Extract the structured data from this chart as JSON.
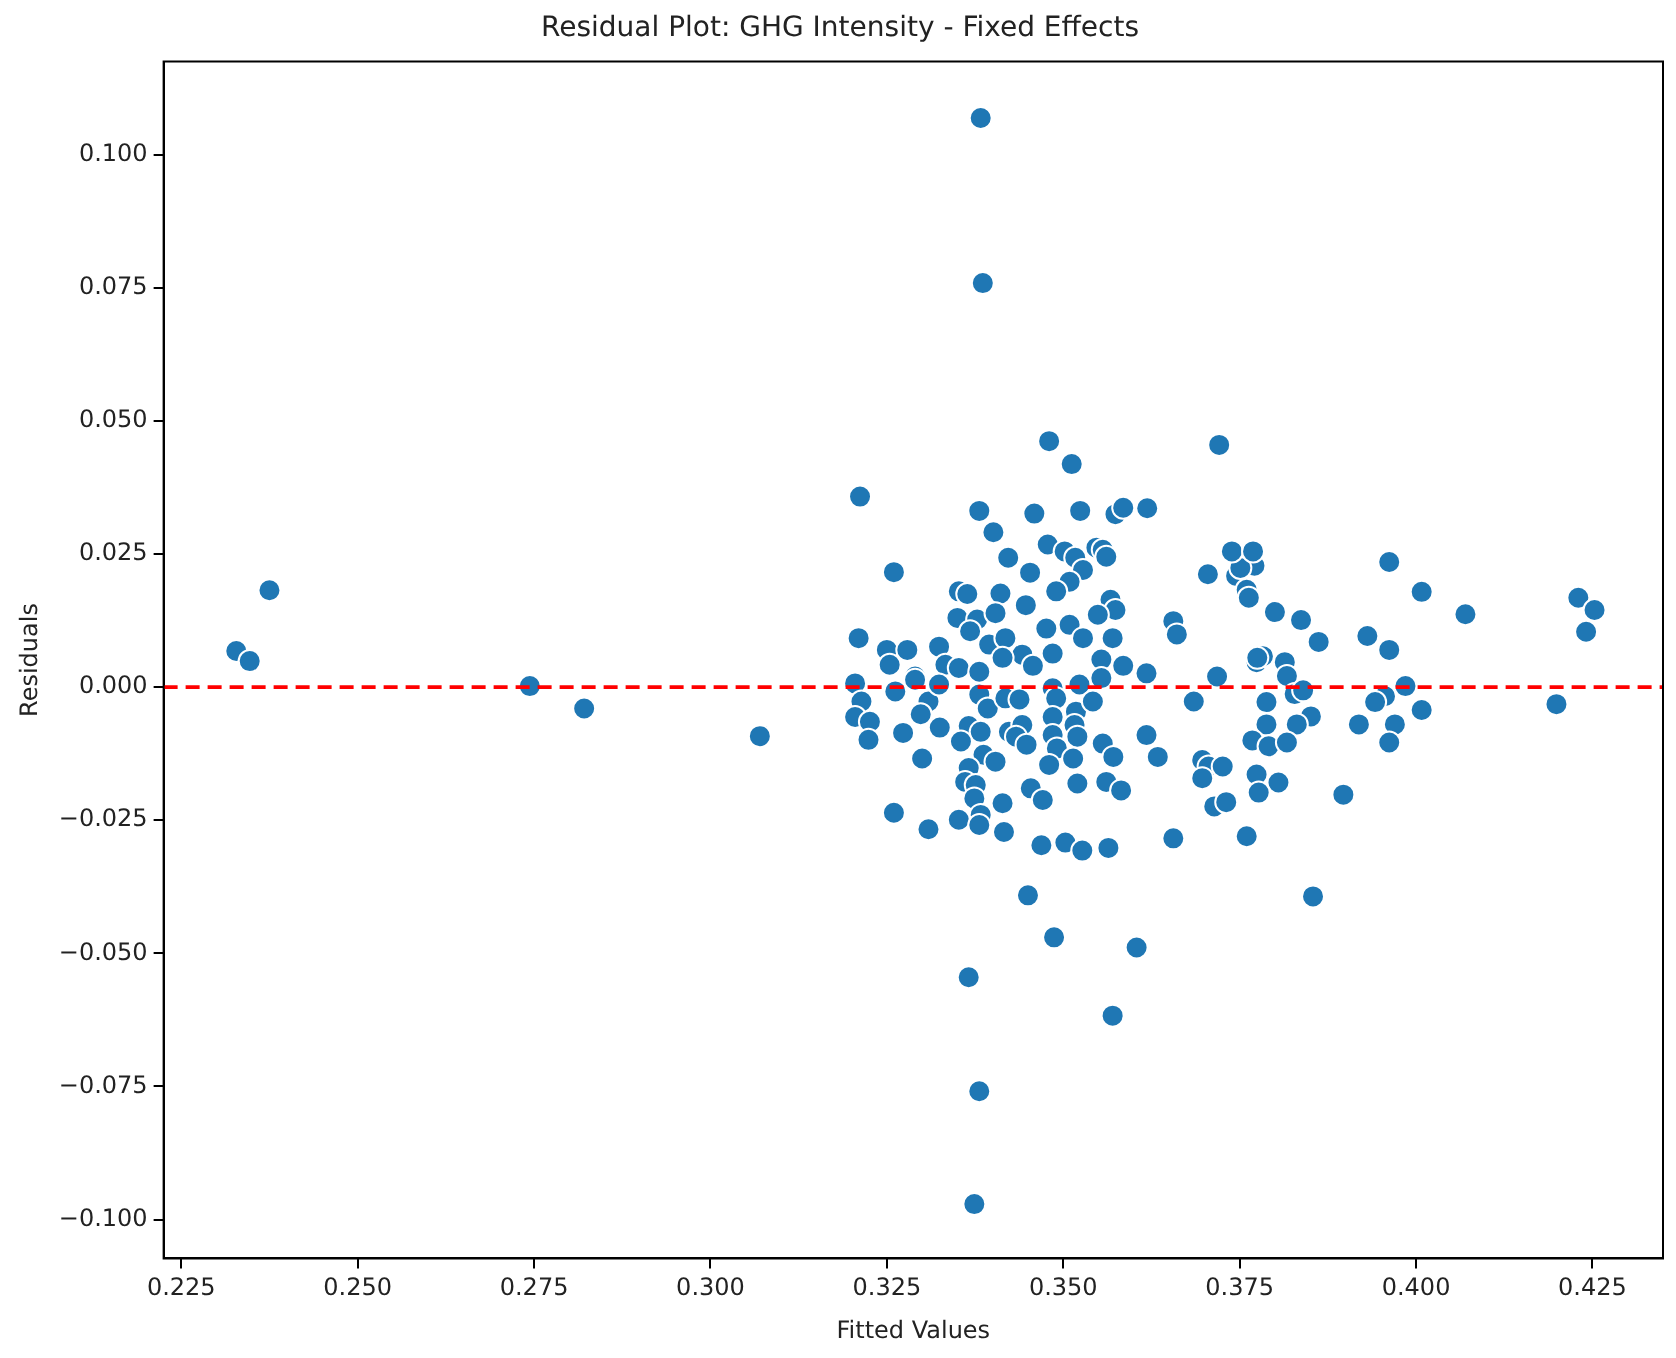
{
  "chart_data": {
    "type": "scatter",
    "title": "Residual Plot: GHG Intensity - Fixed Effects",
    "xlabel": "Fitted Values",
    "ylabel": "Residuals",
    "marker": "circle",
    "grid": false,
    "legend": false,
    "xlim": [
      0.2225,
      0.435
    ],
    "ylim": [
      -0.1073,
      0.1175
    ],
    "xticks": [
      {
        "value": 0.225,
        "label": "0.225"
      },
      {
        "value": 0.25,
        "label": "0.250"
      },
      {
        "value": 0.275,
        "label": "0.275"
      },
      {
        "value": 0.3,
        "label": "0.300"
      },
      {
        "value": 0.325,
        "label": "0.325"
      },
      {
        "value": 0.35,
        "label": "0.350"
      },
      {
        "value": 0.375,
        "label": "0.375"
      },
      {
        "value": 0.4,
        "label": "0.400"
      },
      {
        "value": 0.425,
        "label": "0.425"
      }
    ],
    "yticks": [
      {
        "value": -0.1,
        "label": "−0.100"
      },
      {
        "value": -0.075,
        "label": "−0.075"
      },
      {
        "value": -0.05,
        "label": "−0.050"
      },
      {
        "value": -0.025,
        "label": "−0.025"
      },
      {
        "value": 0,
        "label": "0.000"
      },
      {
        "value": 0.025,
        "label": "0.025"
      },
      {
        "value": 0.05,
        "label": "0.050"
      },
      {
        "value": 0.075,
        "label": "0.075"
      },
      {
        "value": 0.1,
        "label": "0.100"
      }
    ],
    "ref_lines": [
      {
        "axis": "y",
        "value": 0,
        "label": null,
        "color": "#ff0000",
        "line_style": "dashed"
      }
    ],
    "series": [
      {
        "color": "#1f77b4",
        "x": [
          0.3771,
          0.3745,
          0.3751,
          0.376,
          0.3763,
          0.3962,
          0.4008,
          0.407,
          0.423,
          0.4253,
          0.4241,
          0.38,
          0.3837,
          0.3862,
          0.3931,
          0.3962,
          0.3774,
          0.3783,
          0.3814,
          0.3817,
          0.3828,
          0.384,
          0.3788,
          0.3956,
          0.3942,
          0.3985,
          0.4199,
          0.4008,
          0.3851,
          0.3831,
          0.3788,
          0.3919,
          0.397,
          0.3768,
          0.3791,
          0.3817,
          0.3962,
          0.3697,
          0.3706,
          0.3726,
          0.3697,
          0.3774,
          0.3805,
          0.3777,
          0.3897,
          0.3714,
          0.3731,
          0.376,
          0.3854,
          0.2328,
          0.2347,
          0.2375,
          0.2744,
          0.2821,
          0.307,
          0.3383,
          0.3386,
          0.3366,
          0.3381,
          0.3374,
          0.357,
          0.3604,
          0.3487,
          0.3212,
          0.348,
          0.3512,
          0.3721,
          0.3381,
          0.3459,
          0.3524,
          0.3574,
          0.3585,
          0.3619,
          0.3401,
          0.3422,
          0.3478,
          0.3502,
          0.3517,
          0.3547,
          0.3556,
          0.3561,
          0.326,
          0.3453,
          0.3528,
          0.3509,
          0.349,
          0.3352,
          0.3364,
          0.3411,
          0.3447,
          0.3567,
          0.3574,
          0.3549,
          0.335,
          0.3378,
          0.3404,
          0.3476,
          0.3509,
          0.3528,
          0.357,
          0.3656,
          0.3661,
          0.3705,
          0.3739,
          0.3769,
          0.321,
          0.325,
          0.3279,
          0.3324,
          0.3368,
          0.3395,
          0.3418,
          0.3442,
          0.3485,
          0.3333,
          0.3352,
          0.3381,
          0.3414,
          0.3457,
          0.3554,
          0.3585,
          0.3254,
          0.329,
          0.3618,
          0.3718,
          0.3775,
          0.3205,
          0.3214,
          0.3205,
          0.3226,
          0.3224,
          0.3262,
          0.329,
          0.3309,
          0.3298,
          0.3273,
          0.3325,
          0.33,
          0.3324,
          0.3381,
          0.3393,
          0.3366,
          0.3383,
          0.3355,
          0.3387,
          0.3404,
          0.3366,
          0.3361,
          0.3376,
          0.3374,
          0.3383,
          0.3352,
          0.3381,
          0.326,
          0.3309,
          0.3414,
          0.3416,
          0.3418,
          0.3438,
          0.3423,
          0.3442,
          0.3433,
          0.3448,
          0.3454,
          0.3471,
          0.3469,
          0.3503,
          0.3527,
          0.3564,
          0.345,
          0.3485,
          0.349,
          0.3485,
          0.3518,
          0.3516,
          0.3485,
          0.352,
          0.3491,
          0.3514,
          0.348,
          0.352,
          0.3523,
          0.3542,
          0.3556,
          0.3571,
          0.3561,
          0.3582,
          0.3554,
          0.3618,
          0.3634,
          0.3685,
          0.3656
        ],
        "values": [
          0.0228,
          0.0209,
          0.0224,
          0.0183,
          0.0168,
          0.0235,
          0.0179,
          0.0137,
          0.0168,
          0.0145,
          0.0104,
          0.0141,
          0.0126,
          0.0085,
          0.0096,
          0.007,
          0.0047,
          0.0058,
          0.0047,
          0.0021,
          -0.0013,
          -0.0006,
          -0.0028,
          -0.0017,
          -0.0028,
          0.0002,
          -0.0032,
          -0.0043,
          -0.0055,
          -0.007,
          -0.007,
          -0.007,
          -0.007,
          -0.01,
          -0.0111,
          -0.0104,
          -0.0104,
          -0.0137,
          -0.0149,
          -0.0149,
          -0.0171,
          -0.0164,
          -0.0179,
          -0.0198,
          -0.0202,
          -0.0224,
          -0.0216,
          -0.028,
          -0.0393,
          0.0068,
          0.0049,
          0.0182,
          0.0002,
          -0.004,
          -0.0092,
          0.1069,
          0.0759,
          -0.0545,
          -0.0759,
          -0.0971,
          -0.0617,
          -0.0489,
          -0.047,
          0.0358,
          0.0462,
          0.0419,
          0.0455,
          0.0331,
          0.0326,
          0.0331,
          0.0325,
          0.0337,
          0.0336,
          0.0291,
          0.0243,
          0.0268,
          0.0255,
          0.0243,
          0.0262,
          0.0258,
          0.0245,
          0.0216,
          0.0215,
          0.022,
          0.0198,
          0.018,
          0.018,
          0.0175,
          0.0176,
          0.0154,
          0.0164,
          0.0145,
          0.0136,
          0.013,
          0.0127,
          0.0139,
          0.011,
          0.0117,
          0.0092,
          0.0092,
          0.0124,
          0.0099,
          0.0212,
          0.0255,
          0.0255,
          0.0092,
          0.007,
          0.007,
          0.0076,
          0.0105,
          0.008,
          0.0092,
          0.0061,
          0.0063,
          0.0042,
          0.0036,
          0.0029,
          0.0055,
          0.004,
          0.0052,
          0.004,
          0.0042,
          0.002,
          0.0026,
          0.002,
          0.0055,
          0.0007,
          -0.0027,
          -0.0056,
          -0.0065,
          -0.0099,
          -0.0008,
          0.0014,
          -0.0027,
          -0.0051,
          -0.0086,
          -0.0076,
          -0.0134,
          0.0005,
          -0.0014,
          -0.004,
          -0.0073,
          -0.0084,
          -0.0102,
          -0.0127,
          -0.014,
          -0.0152,
          -0.0178,
          -0.0184,
          -0.0209,
          -0.024,
          -0.0249,
          -0.0259,
          -0.0236,
          -0.0267,
          -0.0218,
          -0.0272,
          -0.0021,
          -0.0023,
          -0.0084,
          -0.0071,
          -0.0093,
          -0.0108,
          -0.019,
          -0.0212,
          -0.0297,
          -0.0292,
          -0.0307,
          -0.0302,
          -0.0391,
          -0.0002,
          -0.0021,
          -0.0056,
          -0.0046,
          -0.0071,
          -0.009,
          -0.0093,
          -0.0115,
          -0.0134,
          -0.0146,
          -0.0181,
          0.0005,
          -0.0027,
          -0.0106,
          -0.0131,
          -0.0178,
          -0.0194,
          0.0017,
          -0.009,
          -0.0131,
          -0.0027,
          -0.0284
        ]
      }
    ]
  }
}
